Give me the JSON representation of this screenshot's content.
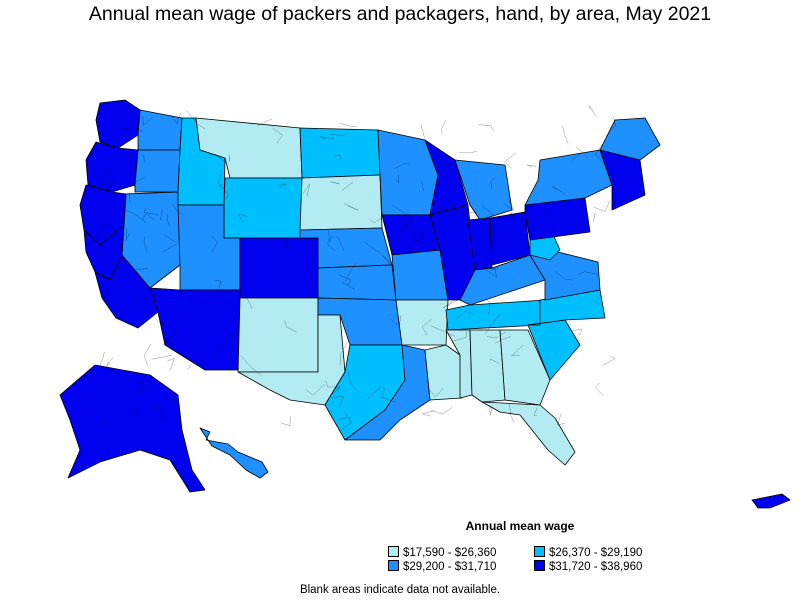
{
  "title": "Annual mean wage of packers and packagers, hand, by area, May 2021",
  "legend": {
    "title": "Annual mean wage",
    "items": [
      {
        "label": "$17,590 - $26,360",
        "color": "#b2ebf2"
      },
      {
        "label": "$26,370 - $29,190",
        "color": "#00bfff"
      },
      {
        "label": "$29,200 - $31,710",
        "color": "#1e90ff"
      },
      {
        "label": "$31,720 - $38,960",
        "color": "#0000ee"
      }
    ]
  },
  "footnote": "Blank areas indicate data not available.",
  "map_regions": [
    {
      "name": "washington-coast",
      "class": 3
    },
    {
      "name": "washington-east",
      "class": 2
    },
    {
      "name": "oregon-west",
      "class": 3
    },
    {
      "name": "oregon-east",
      "class": 2
    },
    {
      "name": "california-north",
      "class": 3
    },
    {
      "name": "california-central",
      "class": 3
    },
    {
      "name": "california-south",
      "class": 3
    },
    {
      "name": "nevada",
      "class": 2
    },
    {
      "name": "idaho",
      "class": 1
    },
    {
      "name": "montana",
      "class": 0
    },
    {
      "name": "wyoming",
      "class": 1
    },
    {
      "name": "utah",
      "class": 2
    },
    {
      "name": "arizona",
      "class": 3
    },
    {
      "name": "colorado",
      "class": 3
    },
    {
      "name": "new-mexico",
      "class": 0
    },
    {
      "name": "north-dakota",
      "class": 1
    },
    {
      "name": "south-dakota",
      "class": 0
    },
    {
      "name": "nebraska",
      "class": 2
    },
    {
      "name": "kansas",
      "class": 2
    },
    {
      "name": "oklahoma",
      "class": 2
    },
    {
      "name": "texas-west",
      "class": 0
    },
    {
      "name": "texas-central",
      "class": 1
    },
    {
      "name": "texas-east",
      "class": 2
    },
    {
      "name": "minnesota",
      "class": 2
    },
    {
      "name": "iowa",
      "class": 3
    },
    {
      "name": "missouri",
      "class": 2
    },
    {
      "name": "arkansas",
      "class": 0
    },
    {
      "name": "louisiana",
      "class": 0
    },
    {
      "name": "wisconsin",
      "class": 3
    },
    {
      "name": "illinois",
      "class": 3
    },
    {
      "name": "michigan",
      "class": 2
    },
    {
      "name": "indiana",
      "class": 3
    },
    {
      "name": "ohio",
      "class": 3
    },
    {
      "name": "kentucky",
      "class": 2
    },
    {
      "name": "tennessee",
      "class": 1
    },
    {
      "name": "mississippi",
      "class": 0
    },
    {
      "name": "alabama",
      "class": 0
    },
    {
      "name": "georgia",
      "class": 0
    },
    {
      "name": "florida",
      "class": 0
    },
    {
      "name": "south-carolina",
      "class": 1
    },
    {
      "name": "north-carolina",
      "class": 1
    },
    {
      "name": "virginia",
      "class": 2
    },
    {
      "name": "west-virginia",
      "class": 1
    },
    {
      "name": "pennsylvania",
      "class": 3
    },
    {
      "name": "new-york",
      "class": 2
    },
    {
      "name": "new-england",
      "class": 3
    },
    {
      "name": "maine",
      "class": 2
    },
    {
      "name": "alaska",
      "class": 3
    },
    {
      "name": "hawaii",
      "class": 2
    },
    {
      "name": "puerto-rico",
      "class": 3
    }
  ]
}
